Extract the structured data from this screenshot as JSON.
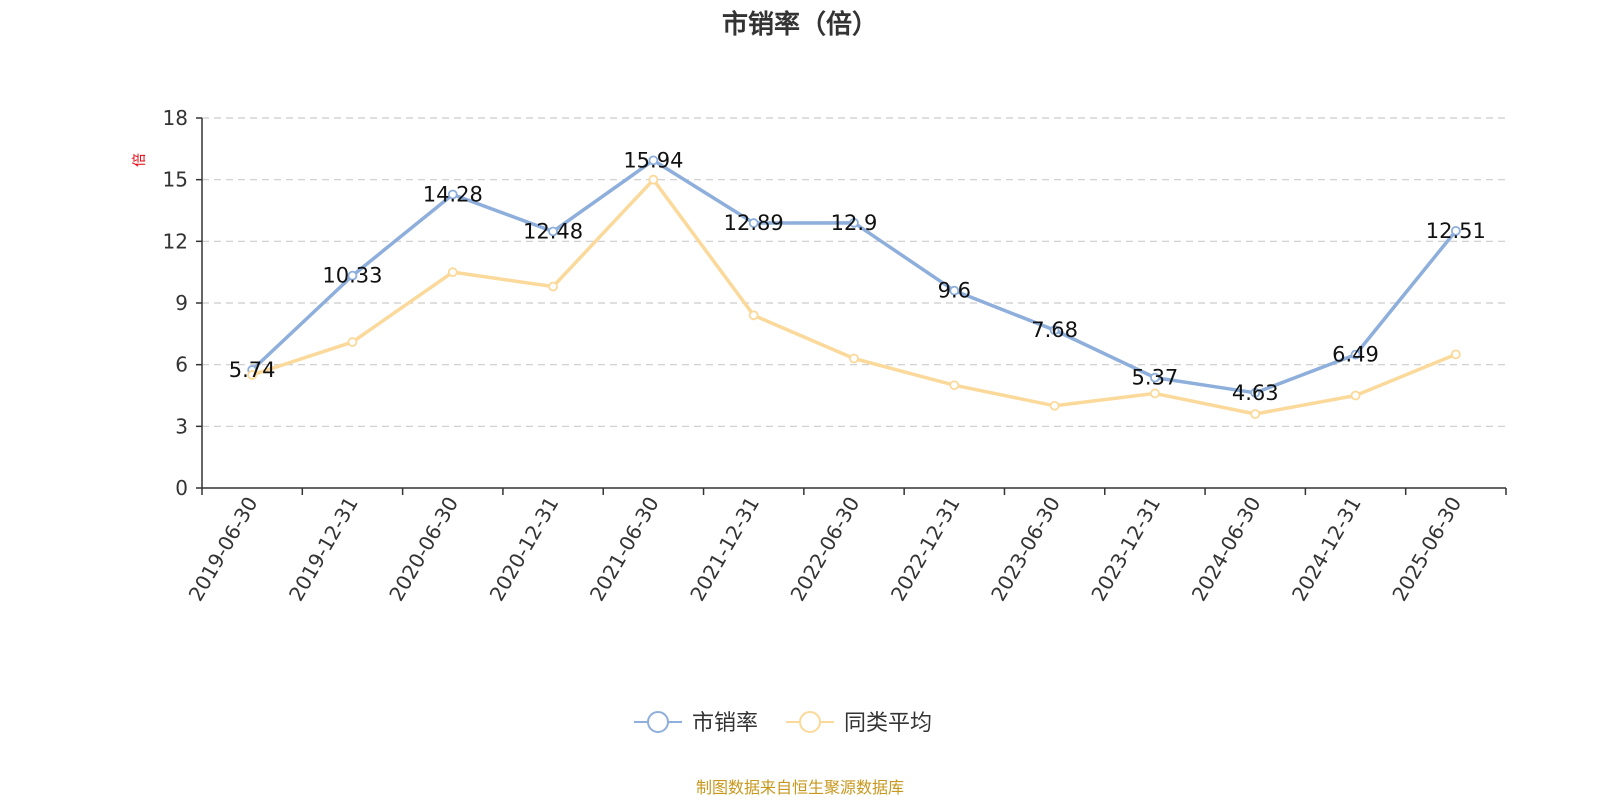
{
  "chart_data": {
    "type": "line",
    "title": "市销率（倍）",
    "unit_label": "倍",
    "categories": [
      "2019-06-30",
      "2019-12-31",
      "2020-06-30",
      "2020-12-31",
      "2021-06-30",
      "2021-12-31",
      "2022-06-30",
      "2022-12-31",
      "2023-06-30",
      "2023-12-31",
      "2024-06-30",
      "2024-12-31",
      "2025-06-30"
    ],
    "y_ticks": [
      0,
      3,
      6,
      9,
      12,
      15,
      18
    ],
    "ylim": [
      0,
      18
    ],
    "grid": true,
    "legend_position": "bottom-center",
    "series": [
      {
        "name": "市销率",
        "color": "#8eaedb",
        "values": [
          5.74,
          10.33,
          14.28,
          12.48,
          15.94,
          12.89,
          12.9,
          9.6,
          7.68,
          5.37,
          4.63,
          6.49,
          12.51
        ],
        "labels": [
          "5.74",
          "10.33",
          "14.28",
          "12.48",
          "15.94",
          "12.89",
          "12.9",
          "9.6",
          "7.68",
          "5.37",
          "4.63",
          "6.49",
          "12.51"
        ]
      },
      {
        "name": "同类平均",
        "color": "#fbd99a",
        "values": [
          5.5,
          7.1,
          10.5,
          9.8,
          15.0,
          8.4,
          6.3,
          5.0,
          4.0,
          4.6,
          3.6,
          4.5,
          6.5
        ]
      }
    ]
  },
  "footer": {
    "source": "制图数据来自恒生聚源数据库"
  }
}
